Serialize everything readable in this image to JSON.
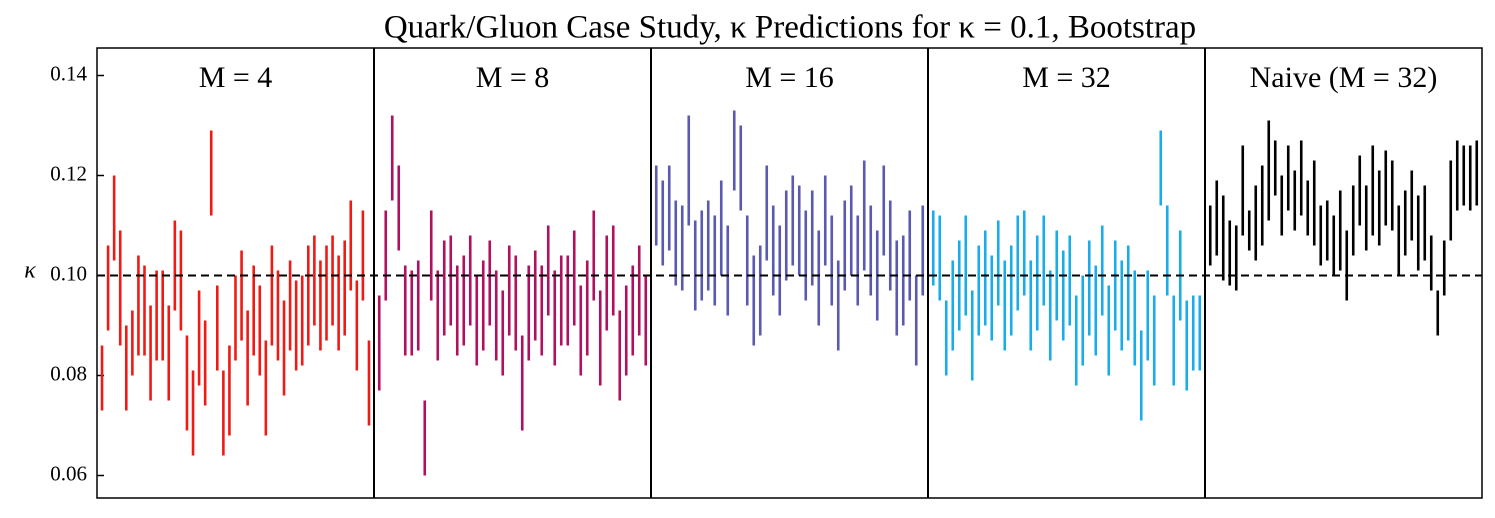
{
  "chart_data": {
    "type": "interval",
    "title": "Quark/Gluon Case Study, κ Predictions for κ = 0.1, Bootstrap",
    "ylabel": "κ",
    "ylim": [
      0.0555,
      0.1455
    ],
    "yticks": [
      0.06,
      0.08,
      {
        "value": 0.1,
        "label": "0.10"
      },
      0.12,
      0.14
    ],
    "reference": 0.1,
    "panels": [
      {
        "title": "M = 4",
        "color": "#f01a14",
        "low": [
          0.073,
          0.089,
          0.103,
          0.086,
          0.073,
          0.08,
          0.084,
          0.084,
          0.075,
          0.083,
          0.083,
          0.075,
          0.093,
          0.089,
          0.069,
          0.064,
          0.078,
          0.074,
          0.112,
          0.081,
          0.064,
          0.068,
          0.083,
          0.087,
          0.074,
          0.084,
          0.08,
          0.068,
          0.086,
          0.083,
          0.076,
          0.085,
          0.081,
          0.082,
          0.086,
          0.09,
          0.085,
          0.087,
          0.09,
          0.085,
          0.088,
          0.097,
          0.081,
          0.095,
          0.07
        ],
        "high": [
          0.086,
          0.106,
          0.12,
          0.109,
          0.09,
          0.093,
          0.104,
          0.102,
          0.094,
          0.101,
          0.101,
          0.094,
          0.111,
          0.109,
          0.088,
          0.081,
          0.097,
          0.091,
          0.129,
          0.098,
          0.081,
          0.086,
          0.1,
          0.105,
          0.093,
          0.102,
          0.098,
          0.087,
          0.106,
          0.101,
          0.095,
          0.103,
          0.099,
          0.1,
          0.106,
          0.108,
          0.103,
          0.106,
          0.108,
          0.104,
          0.107,
          0.115,
          0.099,
          0.113,
          0.087
        ]
      },
      {
        "title": "M = 8",
        "color": "#b0105e",
        "low": [
          0.077,
          0.095,
          0.115,
          0.105,
          0.084,
          0.084,
          0.085,
          0.06,
          0.095,
          0.083,
          0.088,
          0.09,
          0.084,
          0.086,
          0.09,
          0.082,
          0.085,
          0.09,
          0.083,
          0.08,
          0.088,
          0.085,
          0.069,
          0.083,
          0.087,
          0.084,
          0.092,
          0.082,
          0.086,
          0.086,
          0.09,
          0.08,
          0.084,
          0.095,
          0.078,
          0.089,
          0.092,
          0.075,
          0.08,
          0.084,
          0.088,
          0.082
        ],
        "high": [
          0.096,
          0.113,
          0.132,
          0.122,
          0.102,
          0.101,
          0.103,
          0.075,
          0.113,
          0.101,
          0.107,
          0.108,
          0.102,
          0.104,
          0.108,
          0.1,
          0.103,
          0.107,
          0.101,
          0.097,
          0.106,
          0.104,
          0.088,
          0.102,
          0.105,
          0.102,
          0.11,
          0.101,
          0.104,
          0.104,
          0.109,
          0.098,
          0.103,
          0.113,
          0.097,
          0.108,
          0.11,
          0.093,
          0.098,
          0.102,
          0.106,
          0.1
        ]
      },
      {
        "title": "M = 16",
        "color": "#5a5ab0",
        "low": [
          0.106,
          0.102,
          0.105,
          0.098,
          0.097,
          0.11,
          0.093,
          0.095,
          0.097,
          0.094,
          0.1,
          0.092,
          0.117,
          0.113,
          0.094,
          0.086,
          0.088,
          0.103,
          0.096,
          0.092,
          0.099,
          0.102,
          0.1,
          0.095,
          0.098,
          0.09,
          0.102,
          0.094,
          0.085,
          0.097,
          0.1,
          0.094,
          0.101,
          0.096,
          0.091,
          0.104,
          0.097,
          0.088,
          0.09,
          0.095,
          0.082,
          0.096
        ],
        "high": [
          0.122,
          0.119,
          0.122,
          0.115,
          0.114,
          0.132,
          0.111,
          0.113,
          0.115,
          0.112,
          0.119,
          0.11,
          0.133,
          0.13,
          0.112,
          0.104,
          0.106,
          0.122,
          0.114,
          0.11,
          0.117,
          0.12,
          0.118,
          0.113,
          0.117,
          0.109,
          0.12,
          0.112,
          0.103,
          0.115,
          0.118,
          0.112,
          0.123,
          0.114,
          0.109,
          0.122,
          0.115,
          0.107,
          0.108,
          0.113,
          0.1,
          0.114
        ]
      },
      {
        "title": "M = 32",
        "color": "#1aace8",
        "low": [
          0.098,
          0.095,
          0.08,
          0.085,
          0.089,
          0.092,
          0.079,
          0.088,
          0.09,
          0.087,
          0.094,
          0.085,
          0.088,
          0.093,
          0.096,
          0.085,
          0.089,
          0.094,
          0.083,
          0.091,
          0.087,
          0.09,
          0.078,
          0.082,
          0.088,
          0.084,
          0.092,
          0.08,
          0.089,
          0.085,
          0.087,
          0.082,
          0.071,
          0.083,
          0.078,
          0.114,
          0.096,
          0.078,
          0.091,
          0.077,
          0.081,
          0.081
        ],
        "high": [
          0.113,
          0.112,
          0.095,
          0.103,
          0.107,
          0.112,
          0.097,
          0.106,
          0.109,
          0.104,
          0.111,
          0.103,
          0.106,
          0.112,
          0.113,
          0.103,
          0.108,
          0.112,
          0.101,
          0.109,
          0.105,
          0.108,
          0.096,
          0.1,
          0.107,
          0.102,
          0.11,
          0.098,
          0.107,
          0.103,
          0.106,
          0.101,
          0.089,
          0.101,
          0.096,
          0.129,
          0.114,
          0.096,
          0.109,
          0.095,
          0.096,
          0.096
        ]
      },
      {
        "title": "Naive (M = 32)",
        "color": "#000000",
        "low": [
          0.102,
          0.104,
          0.099,
          0.098,
          0.097,
          0.108,
          0.105,
          0.103,
          0.106,
          0.111,
          0.116,
          0.108,
          0.113,
          0.109,
          0.112,
          0.108,
          0.106,
          0.102,
          0.103,
          0.1,
          0.101,
          0.095,
          0.104,
          0.11,
          0.105,
          0.108,
          0.106,
          0.11,
          0.109,
          0.1,
          0.104,
          0.107,
          0.101,
          0.103,
          0.097,
          0.088,
          0.096,
          0.107,
          0.113,
          0.114,
          0.113,
          0.114
        ],
        "high": [
          0.114,
          0.119,
          0.116,
          0.111,
          0.11,
          0.126,
          0.113,
          0.118,
          0.122,
          0.131,
          0.127,
          0.12,
          0.126,
          0.121,
          0.127,
          0.119,
          0.123,
          0.114,
          0.115,
          0.112,
          0.117,
          0.109,
          0.118,
          0.124,
          0.118,
          0.126,
          0.121,
          0.125,
          0.123,
          0.114,
          0.117,
          0.121,
          0.116,
          0.118,
          0.108,
          0.097,
          0.107,
          0.123,
          0.127,
          0.126,
          0.126,
          0.127
        ]
      }
    ]
  }
}
